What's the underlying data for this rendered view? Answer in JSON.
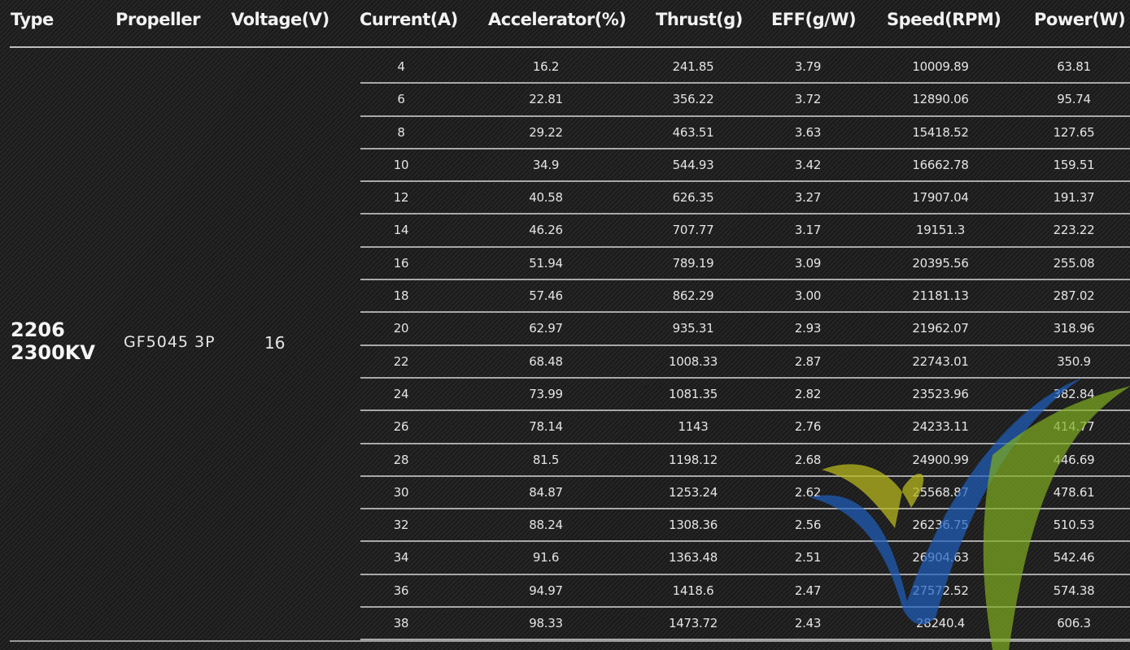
{
  "headers": [
    "Type",
    "Propeller",
    "Voltage(V)",
    "Current(A)",
    "Accelerator(%)",
    "Thrust(g)",
    "EFF(g/W)",
    "Speed(RPM)",
    "Power(W)"
  ],
  "type_line1": "2206",
  "type_line2": "2300KV",
  "propeller": "GF5045 3P",
  "voltage": "16",
  "rows": [
    [
      "4",
      "16.2",
      "241.85",
      "3.79",
      "10009.89",
      "63.81"
    ],
    [
      "6",
      "22.81",
      "356.22",
      "3.72",
      "12890.06",
      "95.74"
    ],
    [
      "8",
      "29.22",
      "463.51",
      "3.63",
      "15418.52",
      "127.65"
    ],
    [
      "10",
      "34.9",
      "544.93",
      "3.42",
      "16662.78",
      "159.51"
    ],
    [
      "12",
      "40.58",
      "626.35",
      "3.27",
      "17907.04",
      "191.37"
    ],
    [
      "14",
      "46.26",
      "707.77",
      "3.17",
      "19151.3",
      "223.22"
    ],
    [
      "16",
      "51.94",
      "789.19",
      "3.09",
      "20395.56",
      "255.08"
    ],
    [
      "18",
      "57.46",
      "862.29",
      "3.00",
      "21181.13",
      "287.02"
    ],
    [
      "20",
      "62.97",
      "935.31",
      "2.93",
      "21962.07",
      "318.96"
    ],
    [
      "22",
      "68.48",
      "1008.33",
      "2.87",
      "22743.01",
      "350.9"
    ],
    [
      "24",
      "73.99",
      "1081.35",
      "2.82",
      "23523.96",
      "382.84"
    ],
    [
      "26",
      "78.14",
      "1143",
      "2.76",
      "24233.11",
      "414.77"
    ],
    [
      "28",
      "81.5",
      "1198.12",
      "2.68",
      "24900.99",
      "446.69"
    ],
    [
      "30",
      "84.87",
      "1253.24",
      "2.62",
      "25568.87",
      "478.61"
    ],
    [
      "32",
      "88.24",
      "1308.36",
      "2.56",
      "26236.75",
      "510.53"
    ],
    [
      "34",
      "91.6",
      "1363.48",
      "2.51",
      "26904.63",
      "542.46"
    ],
    [
      "36",
      "94.97",
      "1418.6",
      "2.47",
      "27572.52",
      "574.38"
    ],
    [
      "38",
      "98.33",
      "1473.72",
      "2.43",
      "28240.4",
      "606.3"
    ]
  ],
  "colors": {
    "background": "#1e1e1e",
    "rule": "#bdbdbd",
    "logo_blue": "#1f5fbf",
    "logo_green": "#7fae1f",
    "logo_yellow": "#b5b51e",
    "logo_cyan": "#2a8fc9"
  },
  "icons": {
    "watermark": "checkmark-logo"
  }
}
